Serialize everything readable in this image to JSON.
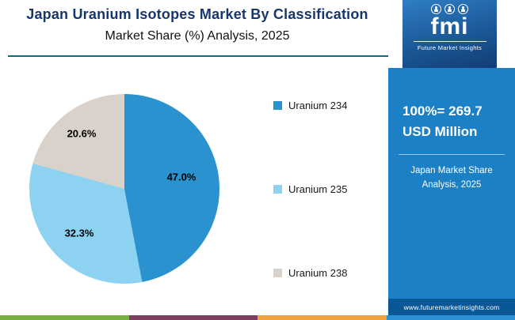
{
  "header": {
    "title": "Japan Uranium Isotopes Market By Classification",
    "subtitle": "Market Share (%) Analysis, 2025"
  },
  "logo": {
    "brand": "fmi",
    "brand_sub": "Future Market Insights"
  },
  "chart_data": {
    "type": "pie",
    "title": "Japan Uranium Isotopes Market By Classification — Market Share (%) Analysis, 2025",
    "categories": [
      "Uranium 234",
      "Uranium 235",
      "Uranium 238"
    ],
    "values": [
      47.0,
      32.3,
      20.6
    ],
    "labels": [
      "47.0%",
      "32.3%",
      "20.6%"
    ],
    "colors": [
      "#2a93cf",
      "#8ed2f2",
      "#d9d2cb"
    ],
    "legend_position": "right",
    "total_label": "100%= 269.7 USD Million",
    "start_angle_deg": 0,
    "direction": "clockwise"
  },
  "legend": {
    "items": [
      {
        "label": "Uranium 234",
        "color": "#2a93cf"
      },
      {
        "label": "Uranium 235",
        "color": "#8ed2f2"
      },
      {
        "label": "Uranium 238",
        "color": "#d9d2cb"
      }
    ]
  },
  "sidebar": {
    "stat_line1": "100%= 269.7",
    "stat_line2": "USD Million",
    "caption_line1": "Japan Market Share",
    "caption_line2": "Analysis, 2025",
    "website": "www.futuremarketinsights.com"
  },
  "colors": {
    "title_color": "#17366e",
    "header_rule": "#0e6a78",
    "sidebar_bg": "#1b80c5",
    "website_bar_bg": "#0a5796",
    "footer_stripes": [
      "#76b043",
      "#7e3e5f",
      "#f0a23e",
      "#2d8fd5"
    ]
  }
}
